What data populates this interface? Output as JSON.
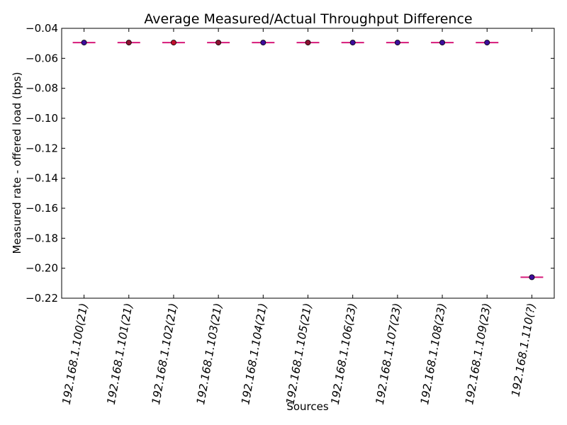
{
  "chart_data": {
    "type": "scatter",
    "title": "Average Measured/Actual Throughput Difference",
    "xlabel": "Sources",
    "ylabel": "Measured rate - offered load (bps)",
    "ylim": [
      -0.22,
      -0.04
    ],
    "yticks": [
      "-0.04",
      "-0.06",
      "-0.08",
      "-0.10",
      "-0.12",
      "-0.14",
      "-0.16",
      "-0.18",
      "-0.20",
      "-0.22"
    ],
    "categories": [
      "192.168.1.100(21)",
      "192.168.1.101(21)",
      "192.168.1.102(21)",
      "192.168.1.103(21)",
      "192.168.1.104(21)",
      "192.168.1.105(21)",
      "192.168.1.106(23)",
      "192.168.1.107(23)",
      "192.168.1.108(23)",
      "192.168.1.109(23)",
      "192.168.1.110(?)"
    ],
    "values": [
      -0.0495,
      -0.0495,
      -0.0495,
      -0.0495,
      -0.0495,
      -0.0495,
      -0.0495,
      -0.0495,
      -0.0495,
      -0.0495,
      -0.206
    ],
    "point_colors": [
      "#3d0d9c",
      "#8c1030",
      "#c0102c",
      "#8c1030",
      "#3d0d9c",
      "#8c1030",
      "#3d0d9c",
      "#3d0d9c",
      "#3d0d9c",
      "#3d0d9c",
      "#3d0d9c"
    ],
    "marker_line_color": "#d61a7a",
    "axes_color": "#000000",
    "grid": false
  }
}
